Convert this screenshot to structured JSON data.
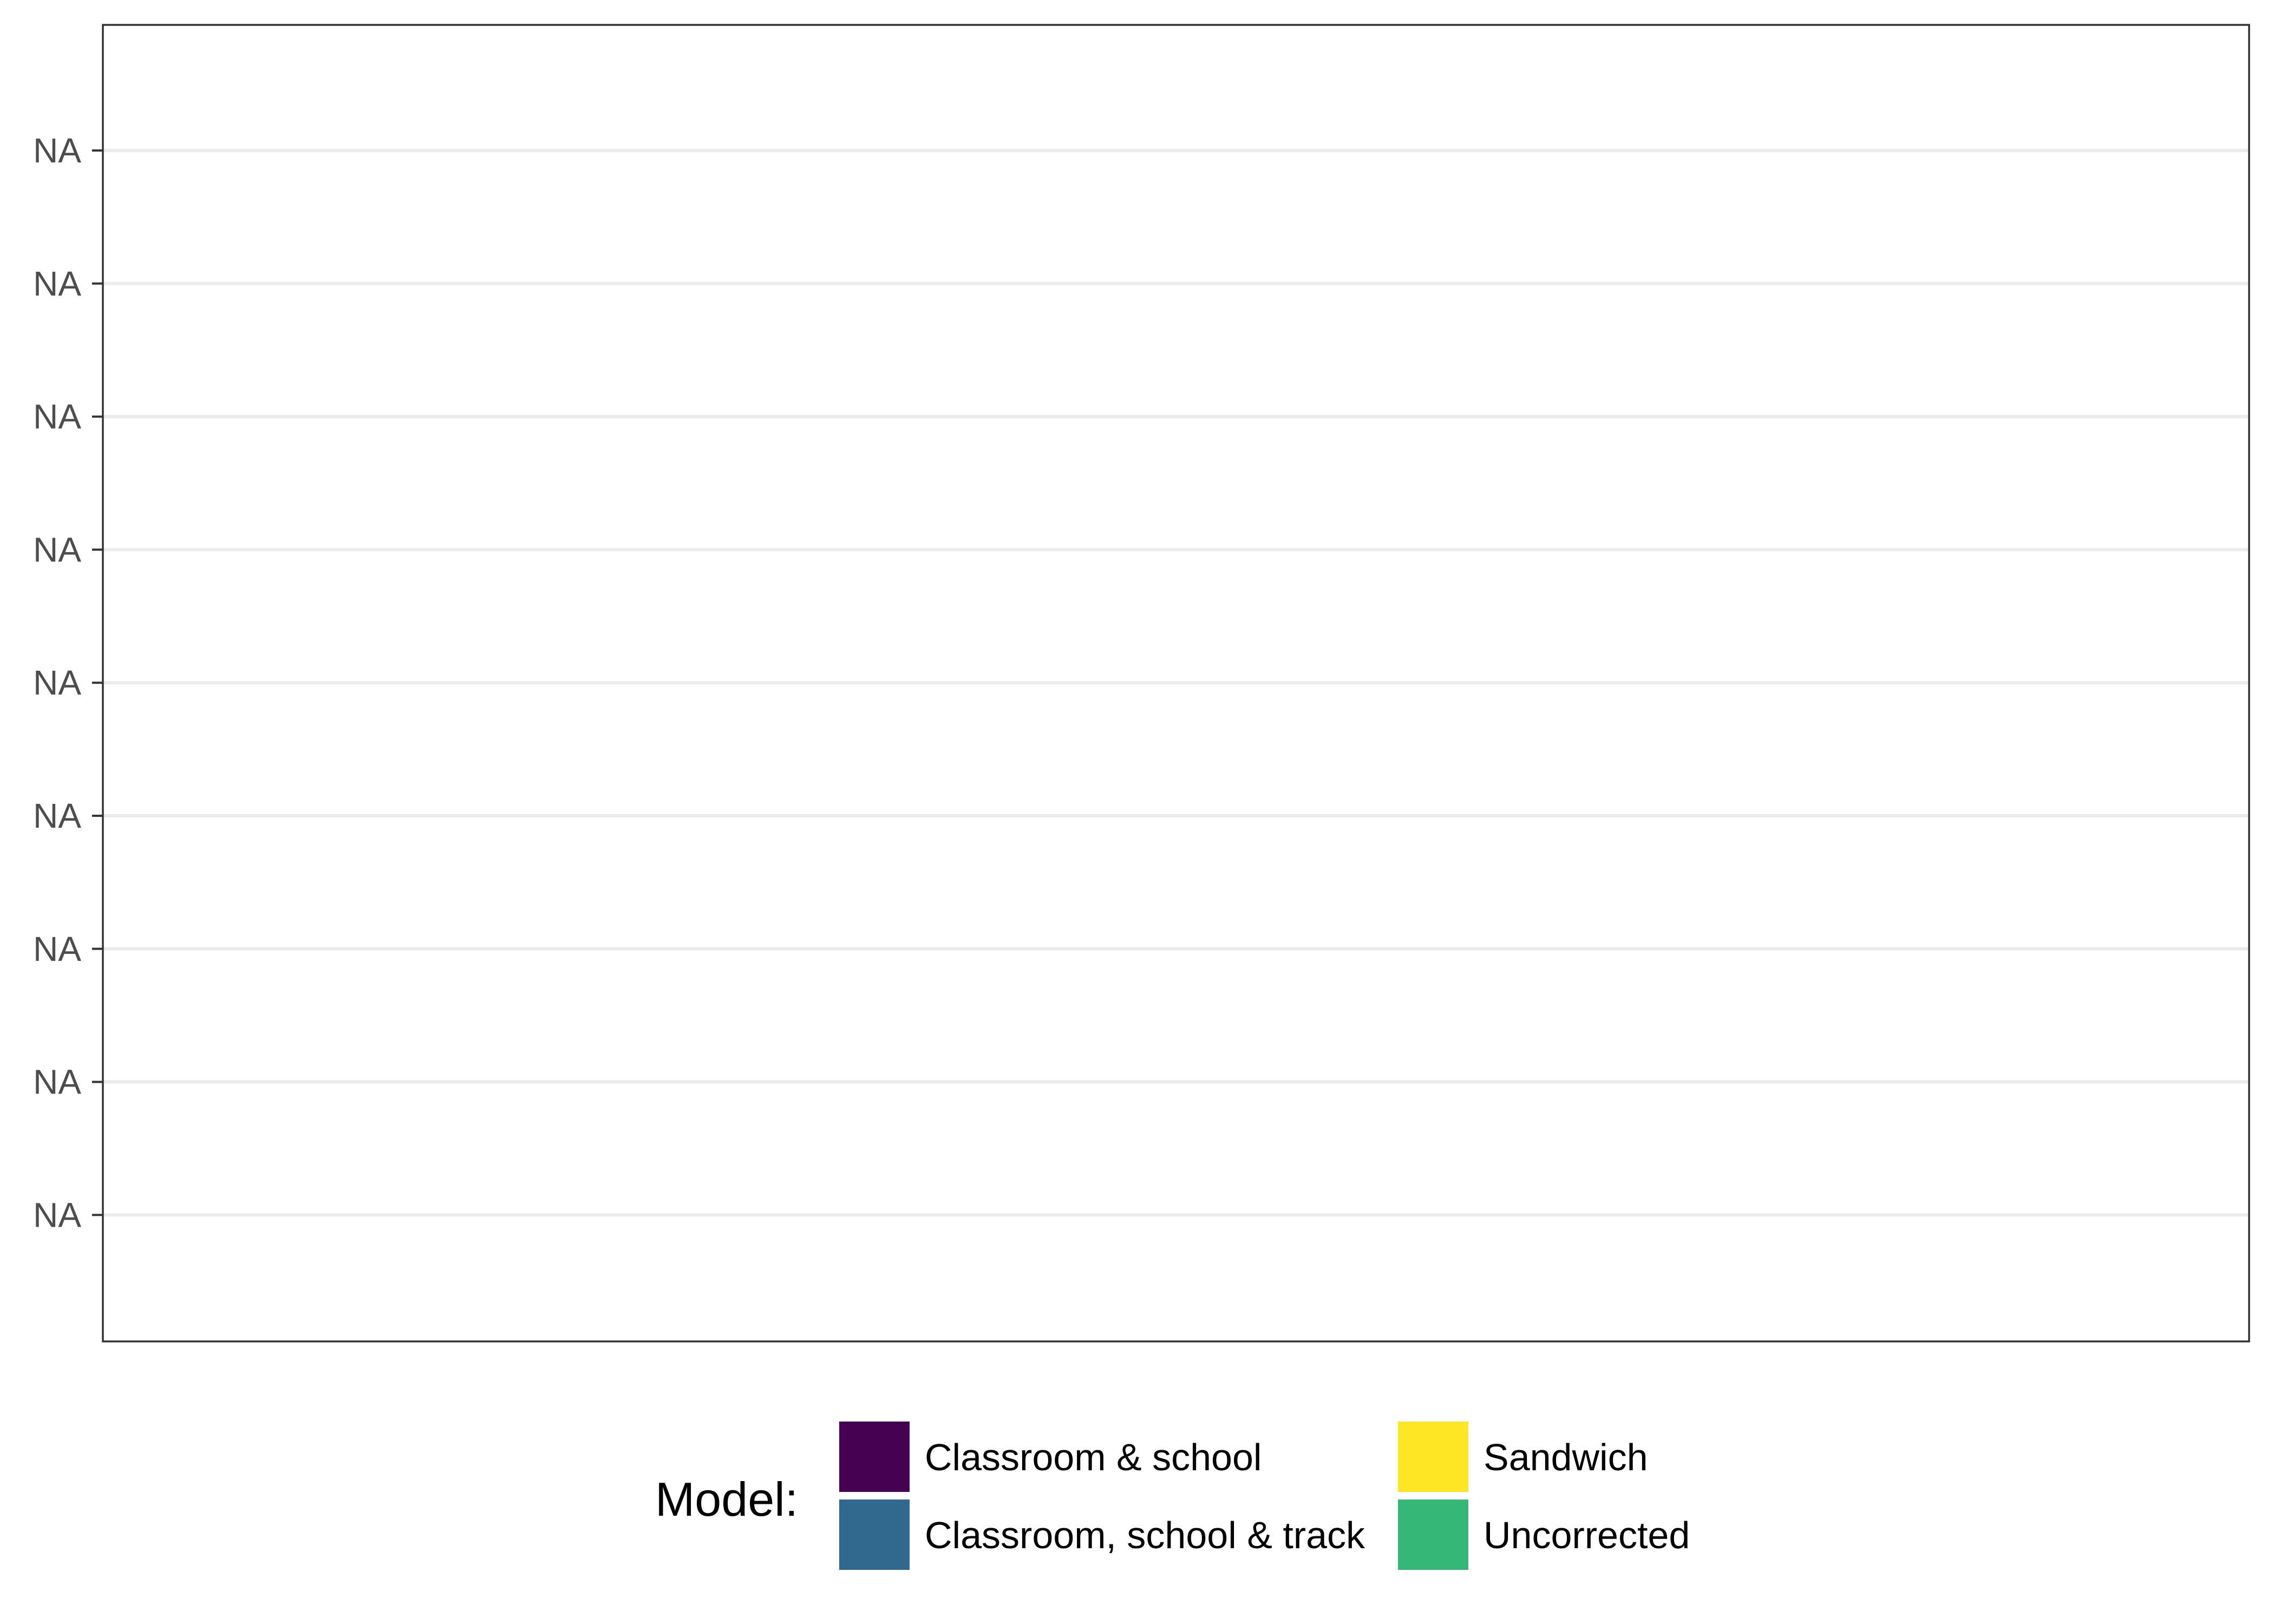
{
  "chart_data": {
    "type": "bar",
    "title": "",
    "xlabel": "",
    "ylabel": "",
    "y_tick_labels": [
      "NA",
      "NA",
      "NA",
      "NA",
      "NA",
      "NA",
      "NA",
      "NA",
      "NA"
    ],
    "grid": "horizontal",
    "legend_placement": "bottom",
    "legend": {
      "title": "Model:",
      "entries": [
        {
          "label": "Classroom & school",
          "color": "#440154"
        },
        {
          "label": "Classroom, school & track",
          "color": "#31688E"
        },
        {
          "label": "Sandwich",
          "color": "#FDE725"
        },
        {
          "label": "Uncorrected",
          "color": "#35B779"
        }
      ]
    },
    "series": []
  }
}
